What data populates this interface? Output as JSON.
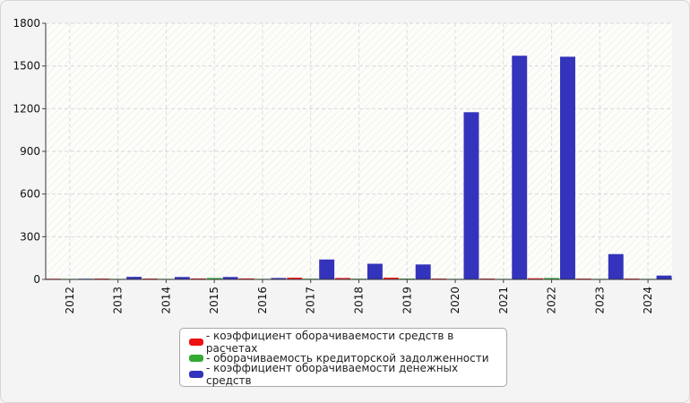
{
  "chart_data": {
    "type": "bar",
    "categories": [
      "2012",
      "2013",
      "2014",
      "2015",
      "2016",
      "2017",
      "2018",
      "2019",
      "2020",
      "2021",
      "2022",
      "2023",
      "2024"
    ],
    "ylim": [
      0,
      1800
    ],
    "yticks": [
      0,
      300,
      600,
      900,
      1200,
      1500,
      1800
    ],
    "grid": true,
    "legend_position": "bottom-center",
    "series": [
      {
        "name": "- коэффициент оборачиваемости средств в расчетах",
        "color": "#ee1111",
        "values": [
          5,
          6,
          6,
          7,
          7,
          12,
          10,
          12,
          6,
          6,
          8,
          6,
          6
        ]
      },
      {
        "name": "- оборачиваемость кредиторской задолженности",
        "color": "#33aa33",
        "values": [
          4,
          4,
          4,
          10,
          4,
          5,
          5,
          6,
          4,
          4,
          10,
          4,
          4
        ]
      },
      {
        "name": "- коэффициент оборачиваемости денежных средств",
        "color": "#3333bb",
        "values": [
          5,
          18,
          17,
          17,
          10,
          140,
          110,
          105,
          1175,
          1572,
          1565,
          178,
          27
        ]
      }
    ]
  }
}
